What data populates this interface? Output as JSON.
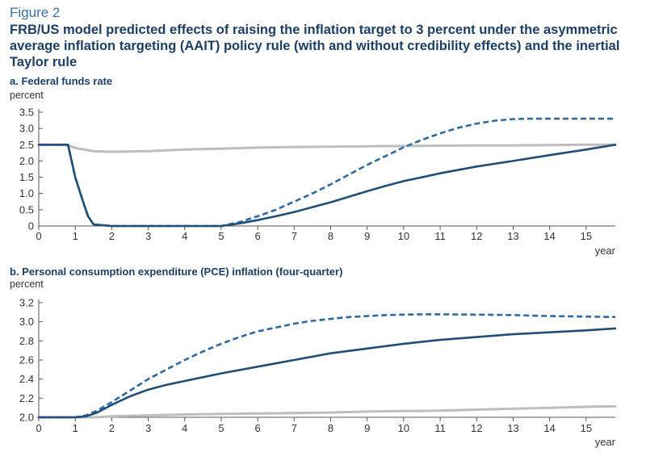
{
  "figure": {
    "label": "Figure 2",
    "title": "FRB/US model predicted effects of raising the inflation target to 3 percent under the asymmetric average inflation targeting (AAIT) policy rule (with and without credibility effects) and the inertial Taylor rule"
  },
  "colors": {
    "dark_blue": "#1f4e79",
    "dashed_blue": "#2e6aa0",
    "gray": "#bdbdbd",
    "axis": "#555555"
  },
  "chart_data": [
    {
      "type": "line",
      "title": "a. Federal funds rate",
      "ylabel": "percent",
      "xlabel": "year",
      "xlim": [
        0,
        15.8
      ],
      "ylim": [
        0,
        3.5
      ],
      "xticks": [
        0,
        1,
        2,
        3,
        4,
        5,
        6,
        7,
        8,
        9,
        10,
        11,
        12,
        13,
        14,
        15
      ],
      "yticks": [
        0,
        0.5,
        1.0,
        1.5,
        2.0,
        2.5,
        3.0,
        3.5
      ],
      "ytick_labels": [
        "0",
        "0.5",
        "1.0",
        "1.5",
        "2.0",
        "2.5",
        "3.0",
        "3.5"
      ],
      "grid": false,
      "series": [
        {
          "style": "gray",
          "x": [
            0,
            0.75,
            1.0,
            1.5,
            2,
            3,
            4,
            5,
            6,
            7,
            8,
            9,
            10,
            11,
            12,
            13,
            14,
            15,
            15.8
          ],
          "y": [
            2.5,
            2.5,
            2.4,
            2.3,
            2.28,
            2.3,
            2.35,
            2.38,
            2.41,
            2.43,
            2.44,
            2.45,
            2.46,
            2.47,
            2.48,
            2.48,
            2.49,
            2.5,
            2.5
          ]
        },
        {
          "style": "dashed",
          "x": [
            0,
            0.8,
            1.0,
            1.2,
            1.35,
            1.5,
            2,
            3,
            4,
            5,
            5.5,
            6,
            6.5,
            7,
            7.5,
            8,
            8.5,
            9,
            9.5,
            10,
            10.5,
            11,
            11.5,
            12,
            12.5,
            13,
            13.5,
            14,
            15,
            15.8
          ],
          "y": [
            2.5,
            2.5,
            1.5,
            0.8,
            0.3,
            0.05,
            0,
            0,
            0,
            0,
            0.12,
            0.3,
            0.5,
            0.75,
            1.0,
            1.28,
            1.58,
            1.88,
            2.15,
            2.42,
            2.65,
            2.85,
            3.02,
            3.15,
            3.24,
            3.29,
            3.3,
            3.3,
            3.3,
            3.3
          ]
        },
        {
          "style": "solid",
          "x": [
            0,
            0.8,
            1.0,
            1.2,
            1.35,
            1.5,
            2,
            3,
            4,
            5,
            5.5,
            6,
            6.5,
            7,
            7.5,
            8,
            8.5,
            9,
            9.5,
            10,
            10.5,
            11,
            12,
            13,
            14,
            15,
            15.8
          ],
          "y": [
            2.5,
            2.5,
            1.5,
            0.8,
            0.3,
            0.05,
            0,
            0,
            0,
            0,
            0.08,
            0.18,
            0.3,
            0.43,
            0.58,
            0.73,
            0.9,
            1.07,
            1.23,
            1.38,
            1.5,
            1.62,
            1.83,
            2.0,
            2.18,
            2.35,
            2.5
          ]
        }
      ]
    },
    {
      "type": "line",
      "title": "b. Personal consumption expenditure (PCE) inflation (four-quarter)",
      "ylabel": "percent",
      "xlabel": "year",
      "xlim": [
        0,
        15.8
      ],
      "ylim": [
        2.0,
        3.2
      ],
      "xticks": [
        0,
        1,
        2,
        3,
        4,
        5,
        6,
        7,
        8,
        9,
        10,
        11,
        12,
        13,
        14,
        15
      ],
      "yticks": [
        2.0,
        2.2,
        2.4,
        2.6,
        2.8,
        3.0,
        3.2
      ],
      "ytick_labels": [
        "2.0",
        "2.2",
        "2.4",
        "2.6",
        "2.8",
        "3.0",
        "3.2"
      ],
      "grid": false,
      "series": [
        {
          "style": "gray",
          "x": [
            0,
            1,
            1.5,
            2,
            3,
            4,
            5,
            6,
            7,
            8,
            9,
            10,
            11,
            12,
            13,
            14,
            15,
            15.8
          ],
          "y": [
            2.0,
            2.0,
            2.0,
            2.01,
            2.02,
            2.03,
            2.035,
            2.04,
            2.045,
            2.05,
            2.06,
            2.065,
            2.07,
            2.08,
            2.09,
            2.1,
            2.11,
            2.115
          ]
        },
        {
          "style": "dashed",
          "x": [
            0,
            1,
            1.3,
            1.6,
            2,
            2.5,
            3,
            3.5,
            4,
            4.5,
            5,
            5.5,
            6,
            6.5,
            7,
            7.5,
            8,
            8.5,
            9,
            9.5,
            10,
            10.5,
            11,
            11.5,
            12,
            13,
            14,
            15,
            15.8
          ],
          "y": [
            2.0,
            2.0,
            2.02,
            2.07,
            2.16,
            2.28,
            2.4,
            2.5,
            2.6,
            2.69,
            2.77,
            2.84,
            2.9,
            2.94,
            2.98,
            3.01,
            3.03,
            3.05,
            3.06,
            3.07,
            3.075,
            3.078,
            3.078,
            3.077,
            3.075,
            3.07,
            3.06,
            3.055,
            3.05
          ]
        },
        {
          "style": "solid",
          "x": [
            0,
            1,
            1.3,
            1.6,
            2,
            2.5,
            3,
            3.5,
            4,
            4.5,
            5,
            6,
            7,
            8,
            9,
            10,
            11,
            12,
            13,
            14,
            15,
            15.8
          ],
          "y": [
            2.0,
            2.0,
            2.01,
            2.05,
            2.13,
            2.22,
            2.29,
            2.34,
            2.38,
            2.42,
            2.46,
            2.53,
            2.6,
            2.67,
            2.72,
            2.77,
            2.81,
            2.84,
            2.87,
            2.89,
            2.91,
            2.93
          ]
        }
      ]
    }
  ]
}
